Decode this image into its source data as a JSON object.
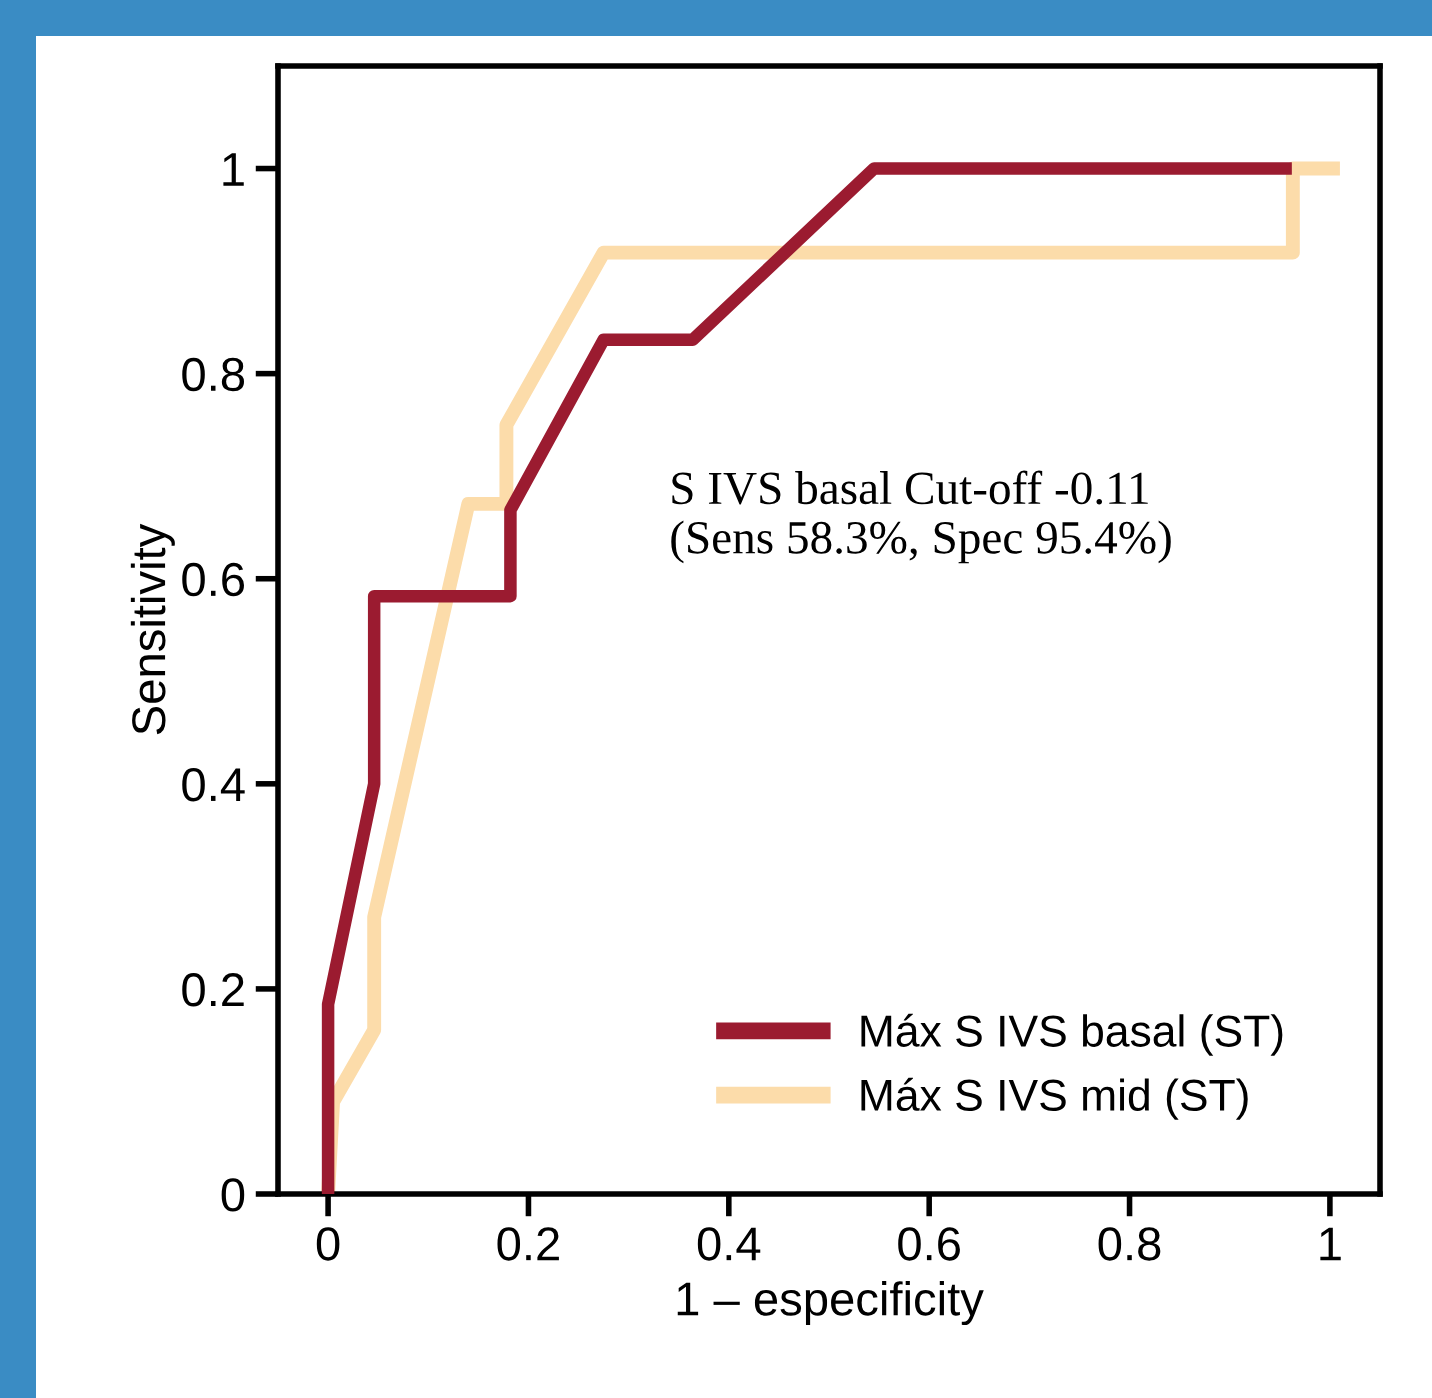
{
  "chart_data": {
    "type": "line",
    "xlabel": "1 – especificity",
    "ylabel": "Sensitivity",
    "series": [
      {
        "name": "Máx S IVS basal (ST)",
        "color": "#9b1b30",
        "x": [
          0,
          0,
          0.046,
          0.046,
          0.182,
          0.182,
          0.275,
          0.364,
          0.545,
          0.962
        ],
        "values": [
          0,
          0.185,
          0.4,
          0.583,
          0.583,
          0.667,
          0.833,
          0.833,
          1,
          1
        ]
      },
      {
        "name": "Máx S IVS mid (ST)",
        "color": "#fcdcaa",
        "x": [
          0,
          0.005,
          0.046,
          0.046,
          0.14,
          0.178,
          0.178,
          0.275,
          0.963,
          0.963,
          1.01
        ],
        "values": [
          0,
          0.09,
          0.16,
          0.27,
          0.673,
          0.673,
          0.75,
          0.918,
          0.918,
          1,
          1
        ]
      }
    ],
    "xlim": [
      -0.05,
      1.05
    ],
    "ylim": [
      0,
      1.1
    ],
    "xticks": [
      0,
      0.2,
      0.4,
      0.6,
      0.8,
      1
    ],
    "yticks": [
      0,
      0.2,
      0.4,
      0.6,
      0.8,
      1
    ],
    "legend": "bottom right",
    "annotations": [
      "S IVS basal Cut-off -0.11\n(Sens 58.3%, Spec 95.4%)"
    ]
  }
}
